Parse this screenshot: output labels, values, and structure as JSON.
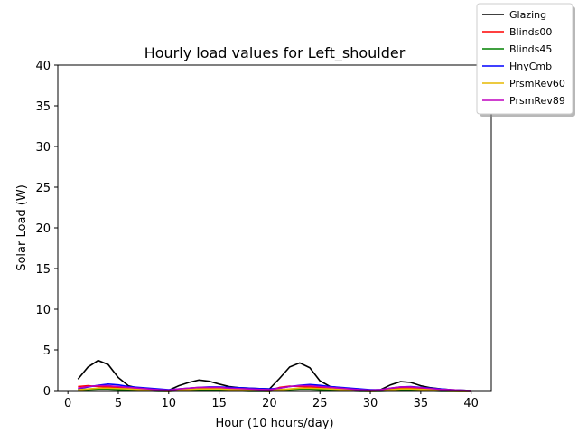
{
  "chart_data": {
    "type": "line",
    "title": "Hourly load values for Left_shoulder",
    "xlabel": "Hour (10 hours/day)",
    "ylabel": "Solar Load (W)",
    "xlim": [
      -1,
      42
    ],
    "ylim": [
      0,
      40
    ],
    "xticks": [
      0,
      5,
      10,
      15,
      20,
      25,
      30,
      35,
      40
    ],
    "yticks": [
      0,
      5,
      10,
      15,
      20,
      25,
      30,
      35,
      40
    ],
    "grid": false,
    "legend_position": "top-right (outside plot)",
    "x": [
      1,
      2,
      3,
      4,
      5,
      6,
      7,
      8,
      9,
      10,
      11,
      12,
      13,
      14,
      15,
      16,
      17,
      18,
      19,
      20,
      21,
      22,
      23,
      24,
      25,
      26,
      27,
      28,
      29,
      30,
      31,
      32,
      33,
      34,
      35,
      36,
      37,
      38,
      39,
      40
    ],
    "series": [
      {
        "name": "Glazing",
        "color": "#000000",
        "values": [
          1.4,
          2.9,
          3.7,
          3.2,
          1.6,
          0.6,
          0.3,
          0.2,
          0.15,
          0.05,
          0.6,
          1.0,
          1.3,
          1.15,
          0.8,
          0.5,
          0.35,
          0.3,
          0.25,
          0.2,
          1.5,
          2.9,
          3.4,
          2.8,
          1.2,
          0.5,
          0.35,
          0.25,
          0.15,
          0.05,
          0.1,
          0.7,
          1.1,
          1.0,
          0.6,
          0.35,
          0.2,
          0.1,
          0.05,
          0.0
        ]
      },
      {
        "name": "Blinds00",
        "color": "#ff0000",
        "values": [
          0.5,
          0.6,
          0.5,
          0.45,
          0.35,
          0.25,
          0.15,
          0.1,
          0.05,
          0.0,
          0.1,
          0.2,
          0.25,
          0.25,
          0.25,
          0.2,
          0.15,
          0.1,
          0.05,
          0.0,
          0.4,
          0.55,
          0.5,
          0.45,
          0.35,
          0.25,
          0.15,
          0.1,
          0.05,
          0.0,
          0.05,
          0.2,
          0.3,
          0.3,
          0.25,
          0.15,
          0.1,
          0.05,
          0.0,
          0.0
        ]
      },
      {
        "name": "Blinds45",
        "color": "#008000",
        "values": [
          0.1,
          0.15,
          0.2,
          0.2,
          0.15,
          0.1,
          0.05,
          0.05,
          0.0,
          0.0,
          0.05,
          0.1,
          0.1,
          0.1,
          0.1,
          0.05,
          0.05,
          0.0,
          0.0,
          0.0,
          0.1,
          0.15,
          0.2,
          0.2,
          0.15,
          0.1,
          0.05,
          0.05,
          0.0,
          0.0,
          0.0,
          0.05,
          0.1,
          0.1,
          0.05,
          0.05,
          0.0,
          0.0,
          0.0,
          0.0
        ]
      },
      {
        "name": "HnyCmb",
        "color": "#0000ff",
        "values": [
          0.2,
          0.45,
          0.65,
          0.8,
          0.7,
          0.5,
          0.4,
          0.3,
          0.2,
          0.1,
          0.2,
          0.3,
          0.4,
          0.45,
          0.45,
          0.4,
          0.35,
          0.3,
          0.25,
          0.2,
          0.3,
          0.5,
          0.65,
          0.75,
          0.65,
          0.5,
          0.4,
          0.3,
          0.2,
          0.1,
          0.1,
          0.3,
          0.45,
          0.5,
          0.4,
          0.3,
          0.2,
          0.1,
          0.05,
          0.0
        ]
      },
      {
        "name": "PrsmRev60",
        "color": "#e6b800",
        "values": [
          0.1,
          0.2,
          0.3,
          0.3,
          0.25,
          0.2,
          0.15,
          0.1,
          0.05,
          0.0,
          0.1,
          0.15,
          0.2,
          0.2,
          0.2,
          0.15,
          0.1,
          0.05,
          0.05,
          0.0,
          0.1,
          0.2,
          0.3,
          0.3,
          0.25,
          0.2,
          0.15,
          0.1,
          0.05,
          0.0,
          0.05,
          0.1,
          0.2,
          0.2,
          0.15,
          0.1,
          0.05,
          0.0,
          0.0,
          0.0
        ]
      },
      {
        "name": "PrsmRev89",
        "color": "#bf00bf",
        "values": [
          0.3,
          0.5,
          0.6,
          0.6,
          0.5,
          0.4,
          0.3,
          0.2,
          0.1,
          0.05,
          0.2,
          0.3,
          0.4,
          0.4,
          0.4,
          0.3,
          0.25,
          0.2,
          0.15,
          0.1,
          0.3,
          0.5,
          0.6,
          0.6,
          0.5,
          0.4,
          0.3,
          0.2,
          0.1,
          0.05,
          0.1,
          0.3,
          0.45,
          0.45,
          0.35,
          0.25,
          0.15,
          0.1,
          0.05,
          0.0
        ]
      }
    ]
  }
}
